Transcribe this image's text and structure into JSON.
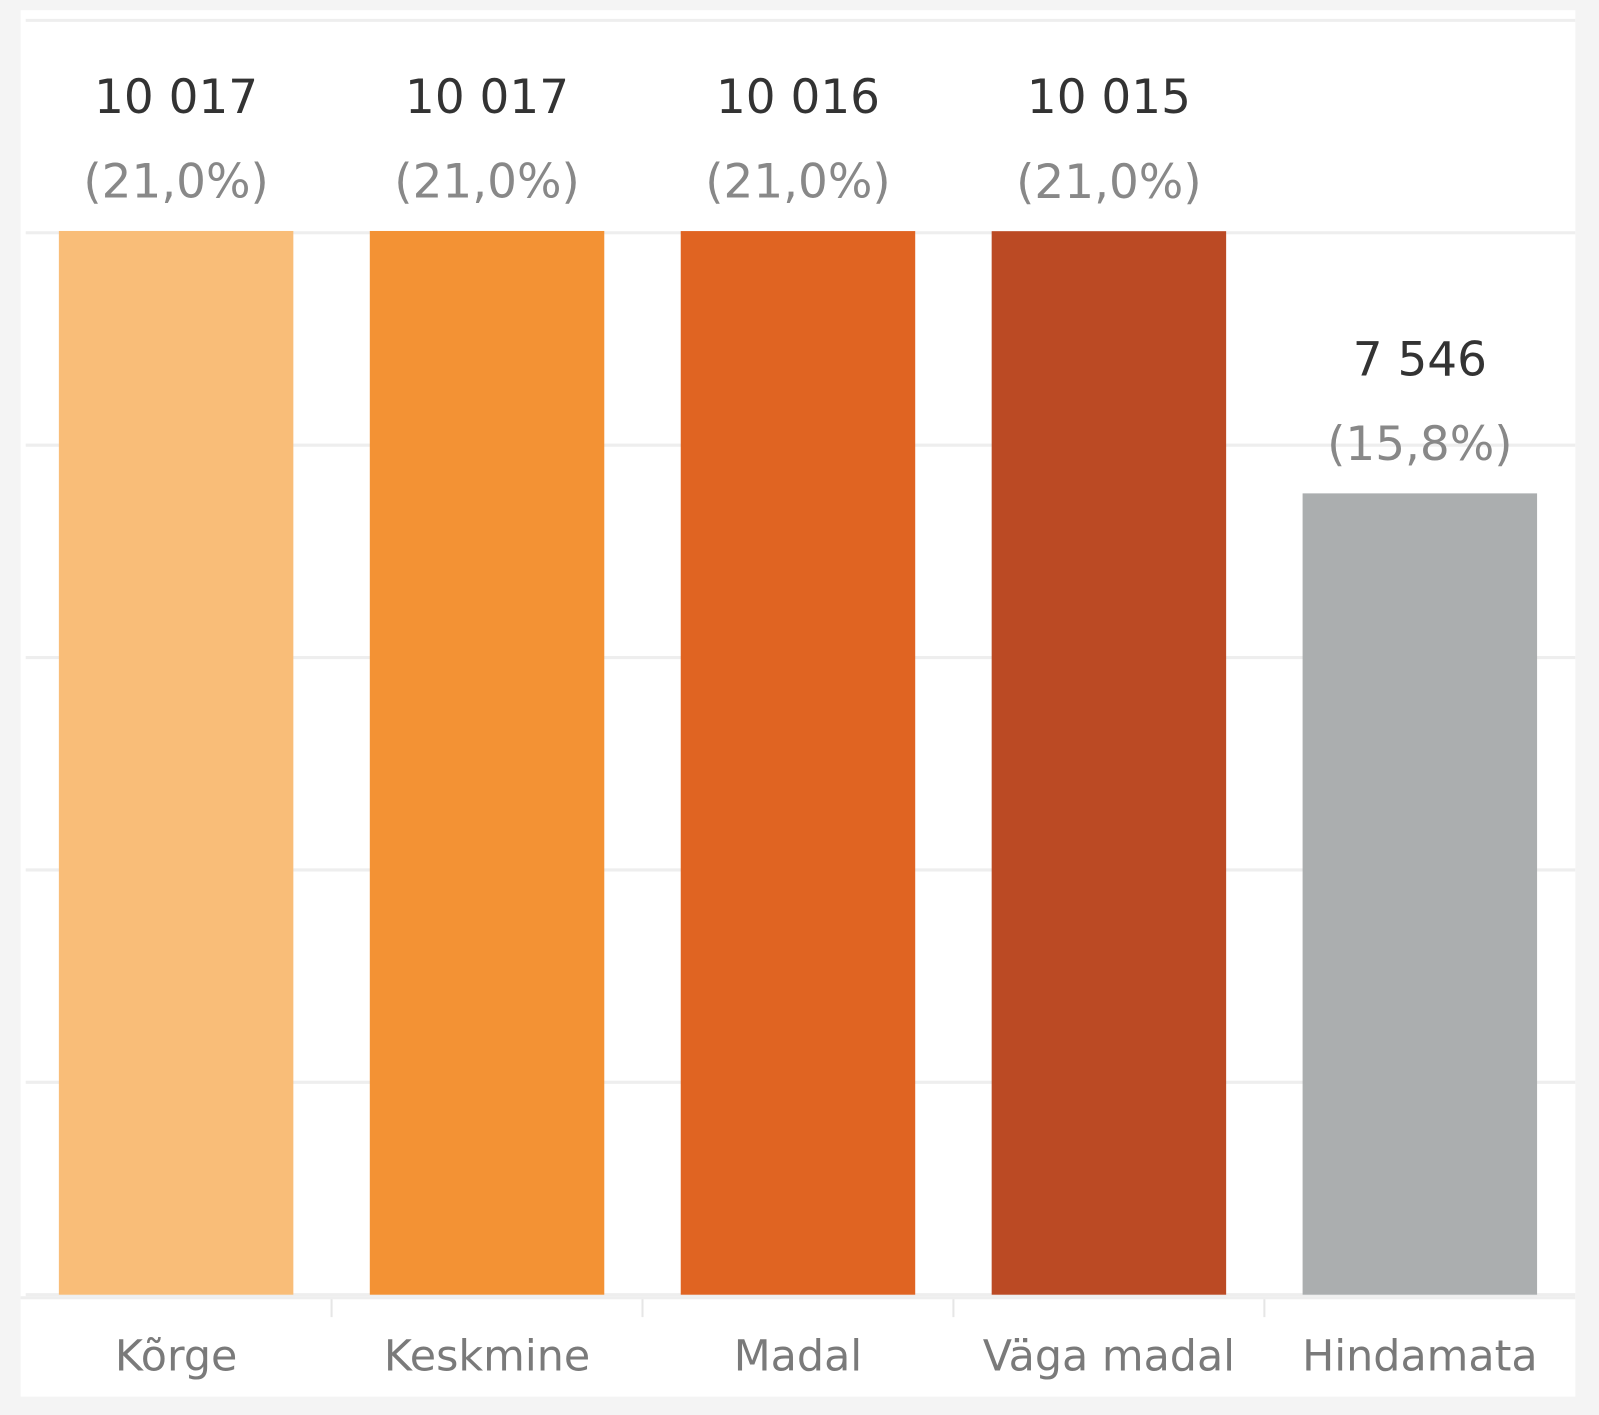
{
  "chart_data": {
    "type": "bar",
    "categories": [
      "Kõrge",
      "Keskmine",
      "Madal",
      "Väga madal",
      "Hindamata"
    ],
    "values": [
      10017,
      10017,
      10016,
      10015,
      7546
    ],
    "value_labels": [
      "10 017",
      "10 017",
      "10 016",
      "10 015",
      "7 546"
    ],
    "shares": [
      21.0,
      21.0,
      21.0,
      21.0,
      15.8
    ],
    "share_labels": [
      "(21,0%)",
      "(21,0%)",
      "(21,0%)",
      "(21,0%)",
      "(15,8%)"
    ],
    "colors": [
      "#f9bd78",
      "#f39234",
      "#e06422",
      "#bb4a24",
      "#abaeaf"
    ],
    "ylim": [
      0,
      12000
    ],
    "yticks": [
      0,
      2000,
      4000,
      6000,
      8000,
      10000,
      12000
    ],
    "grid": true
  }
}
